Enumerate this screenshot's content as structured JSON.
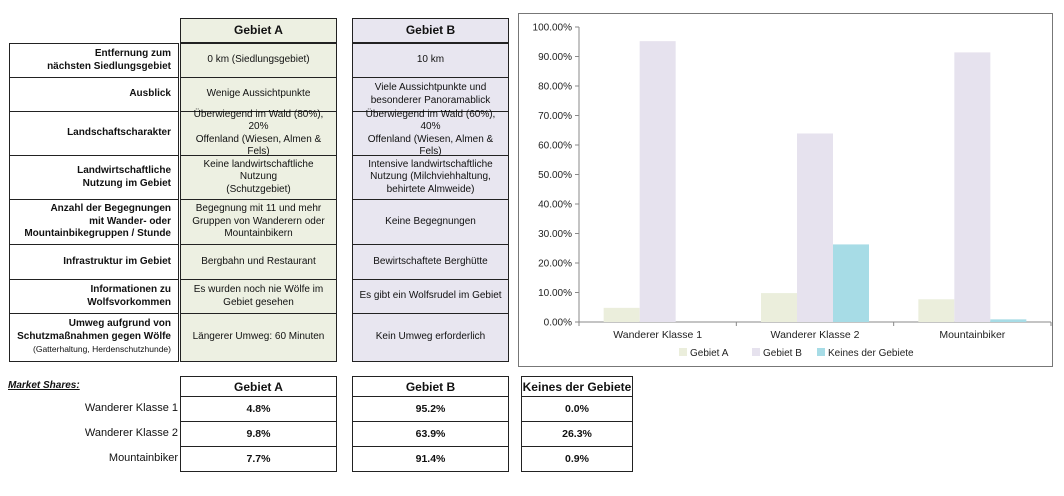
{
  "attributes_table": {
    "col_a": "Gebiet A",
    "col_b": "Gebiet B",
    "rows": [
      {
        "label": "Entfernung zum\nnächsten Siedlungsgebiet",
        "label_small": "",
        "a": "0 km (Siedlungsgebiet)",
        "b": "10 km"
      },
      {
        "label": "Ausblick",
        "label_small": "",
        "a": "Wenige Aussichtpunkte",
        "b": "Viele Aussichtpunkte und\nbesonderer Panoramablick"
      },
      {
        "label": "Landschaftscharakter",
        "label_small": "",
        "a": "Überwiegend im Wald (80%), 20%\nOffenland (Wiesen, Almen & Fels)",
        "b": "Überwiegend im Wald (60%), 40%\nOffenland (Wiesen, Almen & Fels)"
      },
      {
        "label": "Landwirtschaftliche\nNutzung im Gebiet",
        "label_small": "",
        "a": "Keine landwirtschaftliche Nutzung\n(Schutzgebiet)",
        "b": "Intensive landwirtschaftliche\nNutzung (Milchviehhaltung,\nbehirtete Almweide)"
      },
      {
        "label": "Anzahl der Begegnungen\nmit Wander- oder\nMountainbikegruppen / Stunde",
        "label_small": "",
        "a": "Begegnung mit 11 und mehr\nGruppen von Wanderern oder\nMountainbikern",
        "b": "Keine Begegnungen"
      },
      {
        "label": "Infrastruktur im Gebiet",
        "label_small": "",
        "a": "Bergbahn und Restaurant",
        "b": "Bewirtschaftete Berghütte"
      },
      {
        "label": "Informationen zu\nWolfsvorkommen",
        "label_small": "",
        "a": "Es wurden noch nie Wölfe im\nGebiet gesehen",
        "b": "Es gibt ein Wolfsrudel im Gebiet"
      },
      {
        "label": "Umweg aufgrund von\nSchutzmaßnahmen gegen Wölfe",
        "label_small": "(Gatterhaltung, Herdenschutzhunde)",
        "a": "Längerer Umweg: 60 Minuten",
        "b": "Kein Umweg erforderlich"
      }
    ]
  },
  "market_shares": {
    "title": "Market Shares:",
    "headers": [
      "Gebiet A",
      "Gebiet B",
      "Keines der Gebiete"
    ],
    "rows": [
      {
        "label": "Wanderer Klasse 1",
        "values": [
          "4.8%",
          "95.2%",
          "0.0%"
        ]
      },
      {
        "label": "Wanderer Klasse 2",
        "values": [
          "9.8%",
          "63.9%",
          "26.3%"
        ]
      },
      {
        "label": "Mountainbiker",
        "values": [
          "7.7%",
          "91.4%",
          "0.9%"
        ]
      }
    ]
  },
  "colors": {
    "gebiet_a": "#ebeedc",
    "gebiet_b": "#e6e2ee",
    "keines": "#a7dce6",
    "table_a_bg": "#edf0e2",
    "table_b_bg": "#e8e6f0"
  },
  "chart_data": {
    "type": "bar",
    "categories": [
      "Wanderer Klasse 1",
      "Wanderer Klasse 2",
      "Mountainbiker"
    ],
    "series": [
      {
        "name": "Gebiet A",
        "values": [
          4.8,
          9.8,
          7.7
        ]
      },
      {
        "name": "Gebiet B",
        "values": [
          95.2,
          63.9,
          91.4
        ]
      },
      {
        "name": "Keines der Gebiete",
        "values": [
          0.0,
          26.3,
          0.9
        ]
      }
    ],
    "y_ticks": [
      "0.00%",
      "10.00%",
      "20.00%",
      "30.00%",
      "40.00%",
      "50.00%",
      "60.00%",
      "70.00%",
      "80.00%",
      "90.00%",
      "100.00%"
    ],
    "ylim": [
      0,
      100
    ],
    "grid": false,
    "legend_position": "bottom"
  }
}
